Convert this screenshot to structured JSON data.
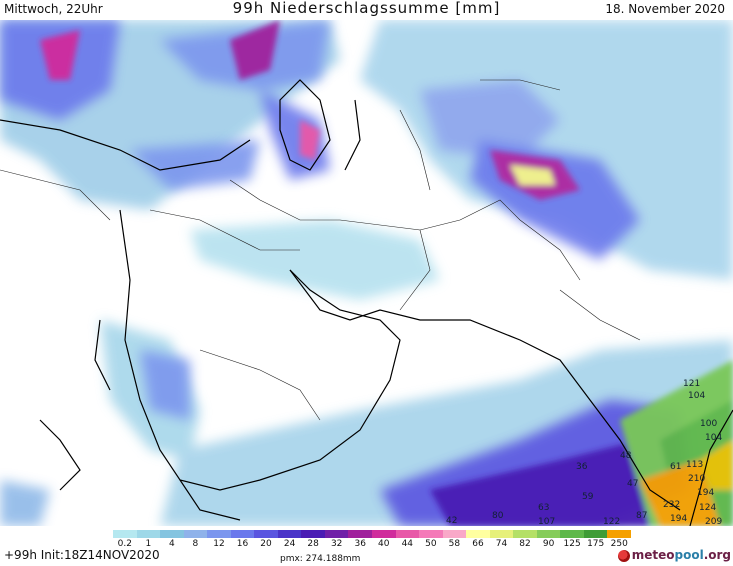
{
  "header": {
    "day": "Mittwoch, 22Uhr",
    "title": "99h Niederschlagssumme [mm]",
    "date": "18. November 2020"
  },
  "legend": {
    "ticks": [
      "0.2",
      "1",
      "4",
      "8",
      "12",
      "16",
      "20",
      "24",
      "28",
      "32",
      "36",
      "40",
      "44",
      "50",
      "58",
      "66",
      "74",
      "82",
      "90",
      "125",
      "175",
      "250"
    ],
    "colors": [
      "#b5e8f0",
      "#9ed8e8",
      "#84c4e0",
      "#8fb2ea",
      "#7b96ee",
      "#6a78ec",
      "#5a55e0",
      "#4a34c8",
      "#4a1cb4",
      "#7020a8",
      "#a0209c",
      "#d02c9c",
      "#e858a8",
      "#f47ab8",
      "#f9a8c8",
      "#ffffa0",
      "#e6f07a",
      "#b4e066",
      "#86cc5a",
      "#5eb84a",
      "#3f9c36",
      "#f5a000"
    ]
  },
  "footer": {
    "init": "+99h Init:18Z14NOV2020",
    "pmax": "pmx: 274.188mm",
    "brand_a": "meteo",
    "brand_b": "pool",
    "brand_c": ".org"
  },
  "map_labels": [
    {
      "text": "121"
    },
    {
      "text": "104"
    },
    {
      "text": "100"
    },
    {
      "text": "104"
    },
    {
      "text": "113"
    },
    {
      "text": "210"
    },
    {
      "text": "194"
    },
    {
      "text": "232"
    },
    {
      "text": "124"
    },
    {
      "text": "194"
    },
    {
      "text": "209"
    },
    {
      "text": "36"
    },
    {
      "text": "48"
    },
    {
      "text": "61"
    },
    {
      "text": "47"
    },
    {
      "text": "59"
    },
    {
      "text": "63"
    },
    {
      "text": "80"
    },
    {
      "text": "42"
    },
    {
      "text": "107"
    },
    {
      "text": "122"
    },
    {
      "text": "87"
    }
  ]
}
